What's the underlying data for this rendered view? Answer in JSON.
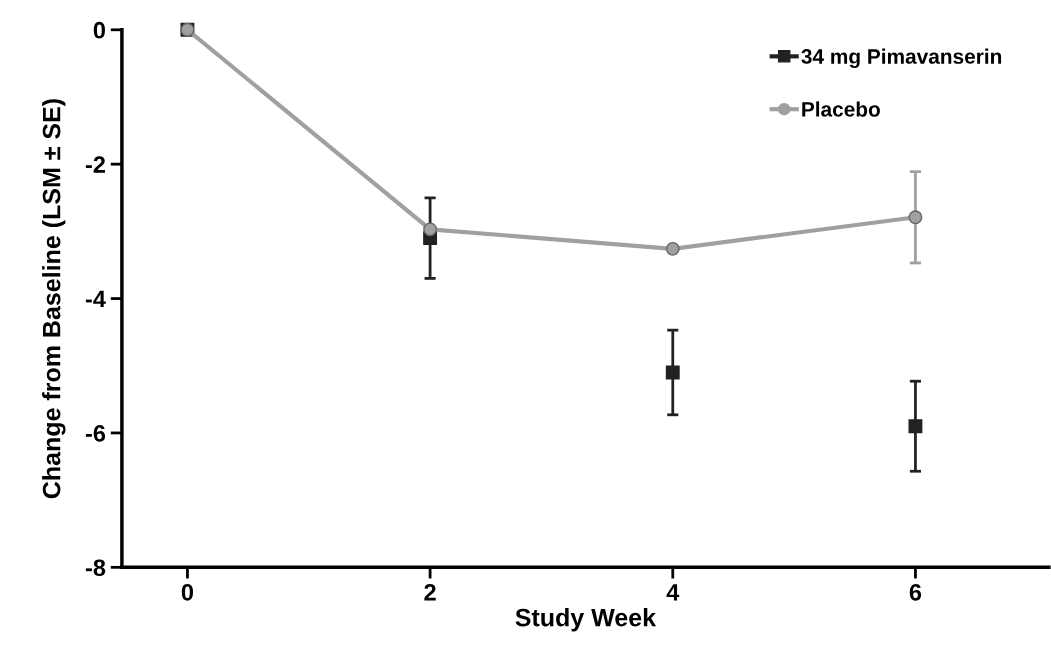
{
  "chart_data": {
    "type": "line",
    "xlabel": "Study Week",
    "ylabel": "Change from Baseline (LSM ± SE)",
    "x": [
      0,
      2,
      4,
      6
    ],
    "series": [
      {
        "name": "34 mg Pimavanserin",
        "type": "scatter",
        "color": "#222222",
        "marker": "square",
        "values": [
          0,
          -3.1,
          -5.1,
          -5.9
        ],
        "errors": [
          null,
          0.6,
          0.63,
          0.67
        ]
      },
      {
        "name": "Placebo",
        "color": "#a0a0a0",
        "marker": "circle",
        "values": [
          0,
          -2.97,
          -3.26,
          -2.79
        ],
        "errors": [
          null,
          null,
          null,
          0.68
        ]
      }
    ],
    "xlim": [
      -0.54,
      7.1
    ],
    "xticks": [
      0,
      2,
      4,
      6
    ],
    "ylim": [
      -8,
      0
    ],
    "yticks": [
      0,
      -2,
      -4,
      -6,
      -8
    ],
    "grid": false,
    "legend": "top right"
  }
}
